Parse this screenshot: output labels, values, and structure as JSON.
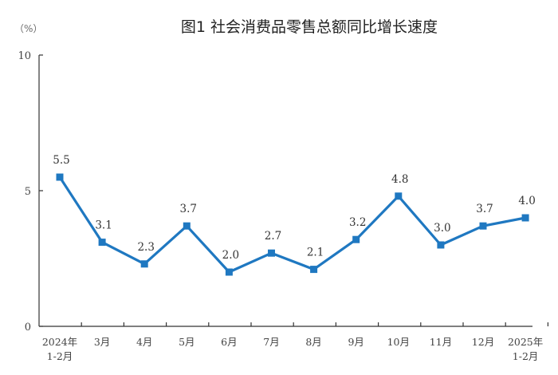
{
  "chart_data": {
    "type": "line",
    "title": "图1  社会消费品零售总额同比增长速度",
    "ylabel": "（%）",
    "xlabel": "",
    "ylim": [
      0,
      10
    ],
    "yticks": [
      "0",
      "5",
      "10"
    ],
    "categories": [
      "2024年\n1-2月",
      "3月",
      "4月",
      "5月",
      "6月",
      "7月",
      "8月",
      "9月",
      "10月",
      "11月",
      "12月",
      "2025年\n1-2月"
    ],
    "series": [
      {
        "name": "社会消费品零售总额同比增长速度",
        "values": [
          5.5,
          3.1,
          2.3,
          3.7,
          2.0,
          2.7,
          2.1,
          3.2,
          4.8,
          3.0,
          3.7,
          4.0
        ],
        "labels": [
          "5.5",
          "3.1",
          "2.3",
          "3.7",
          "2.0",
          "2.7",
          "2.1",
          "3.2",
          "4.8",
          "3.0",
          "3.7",
          "4.0"
        ],
        "color": "#1f78c1"
      }
    ],
    "grid": false,
    "legend": "none"
  }
}
